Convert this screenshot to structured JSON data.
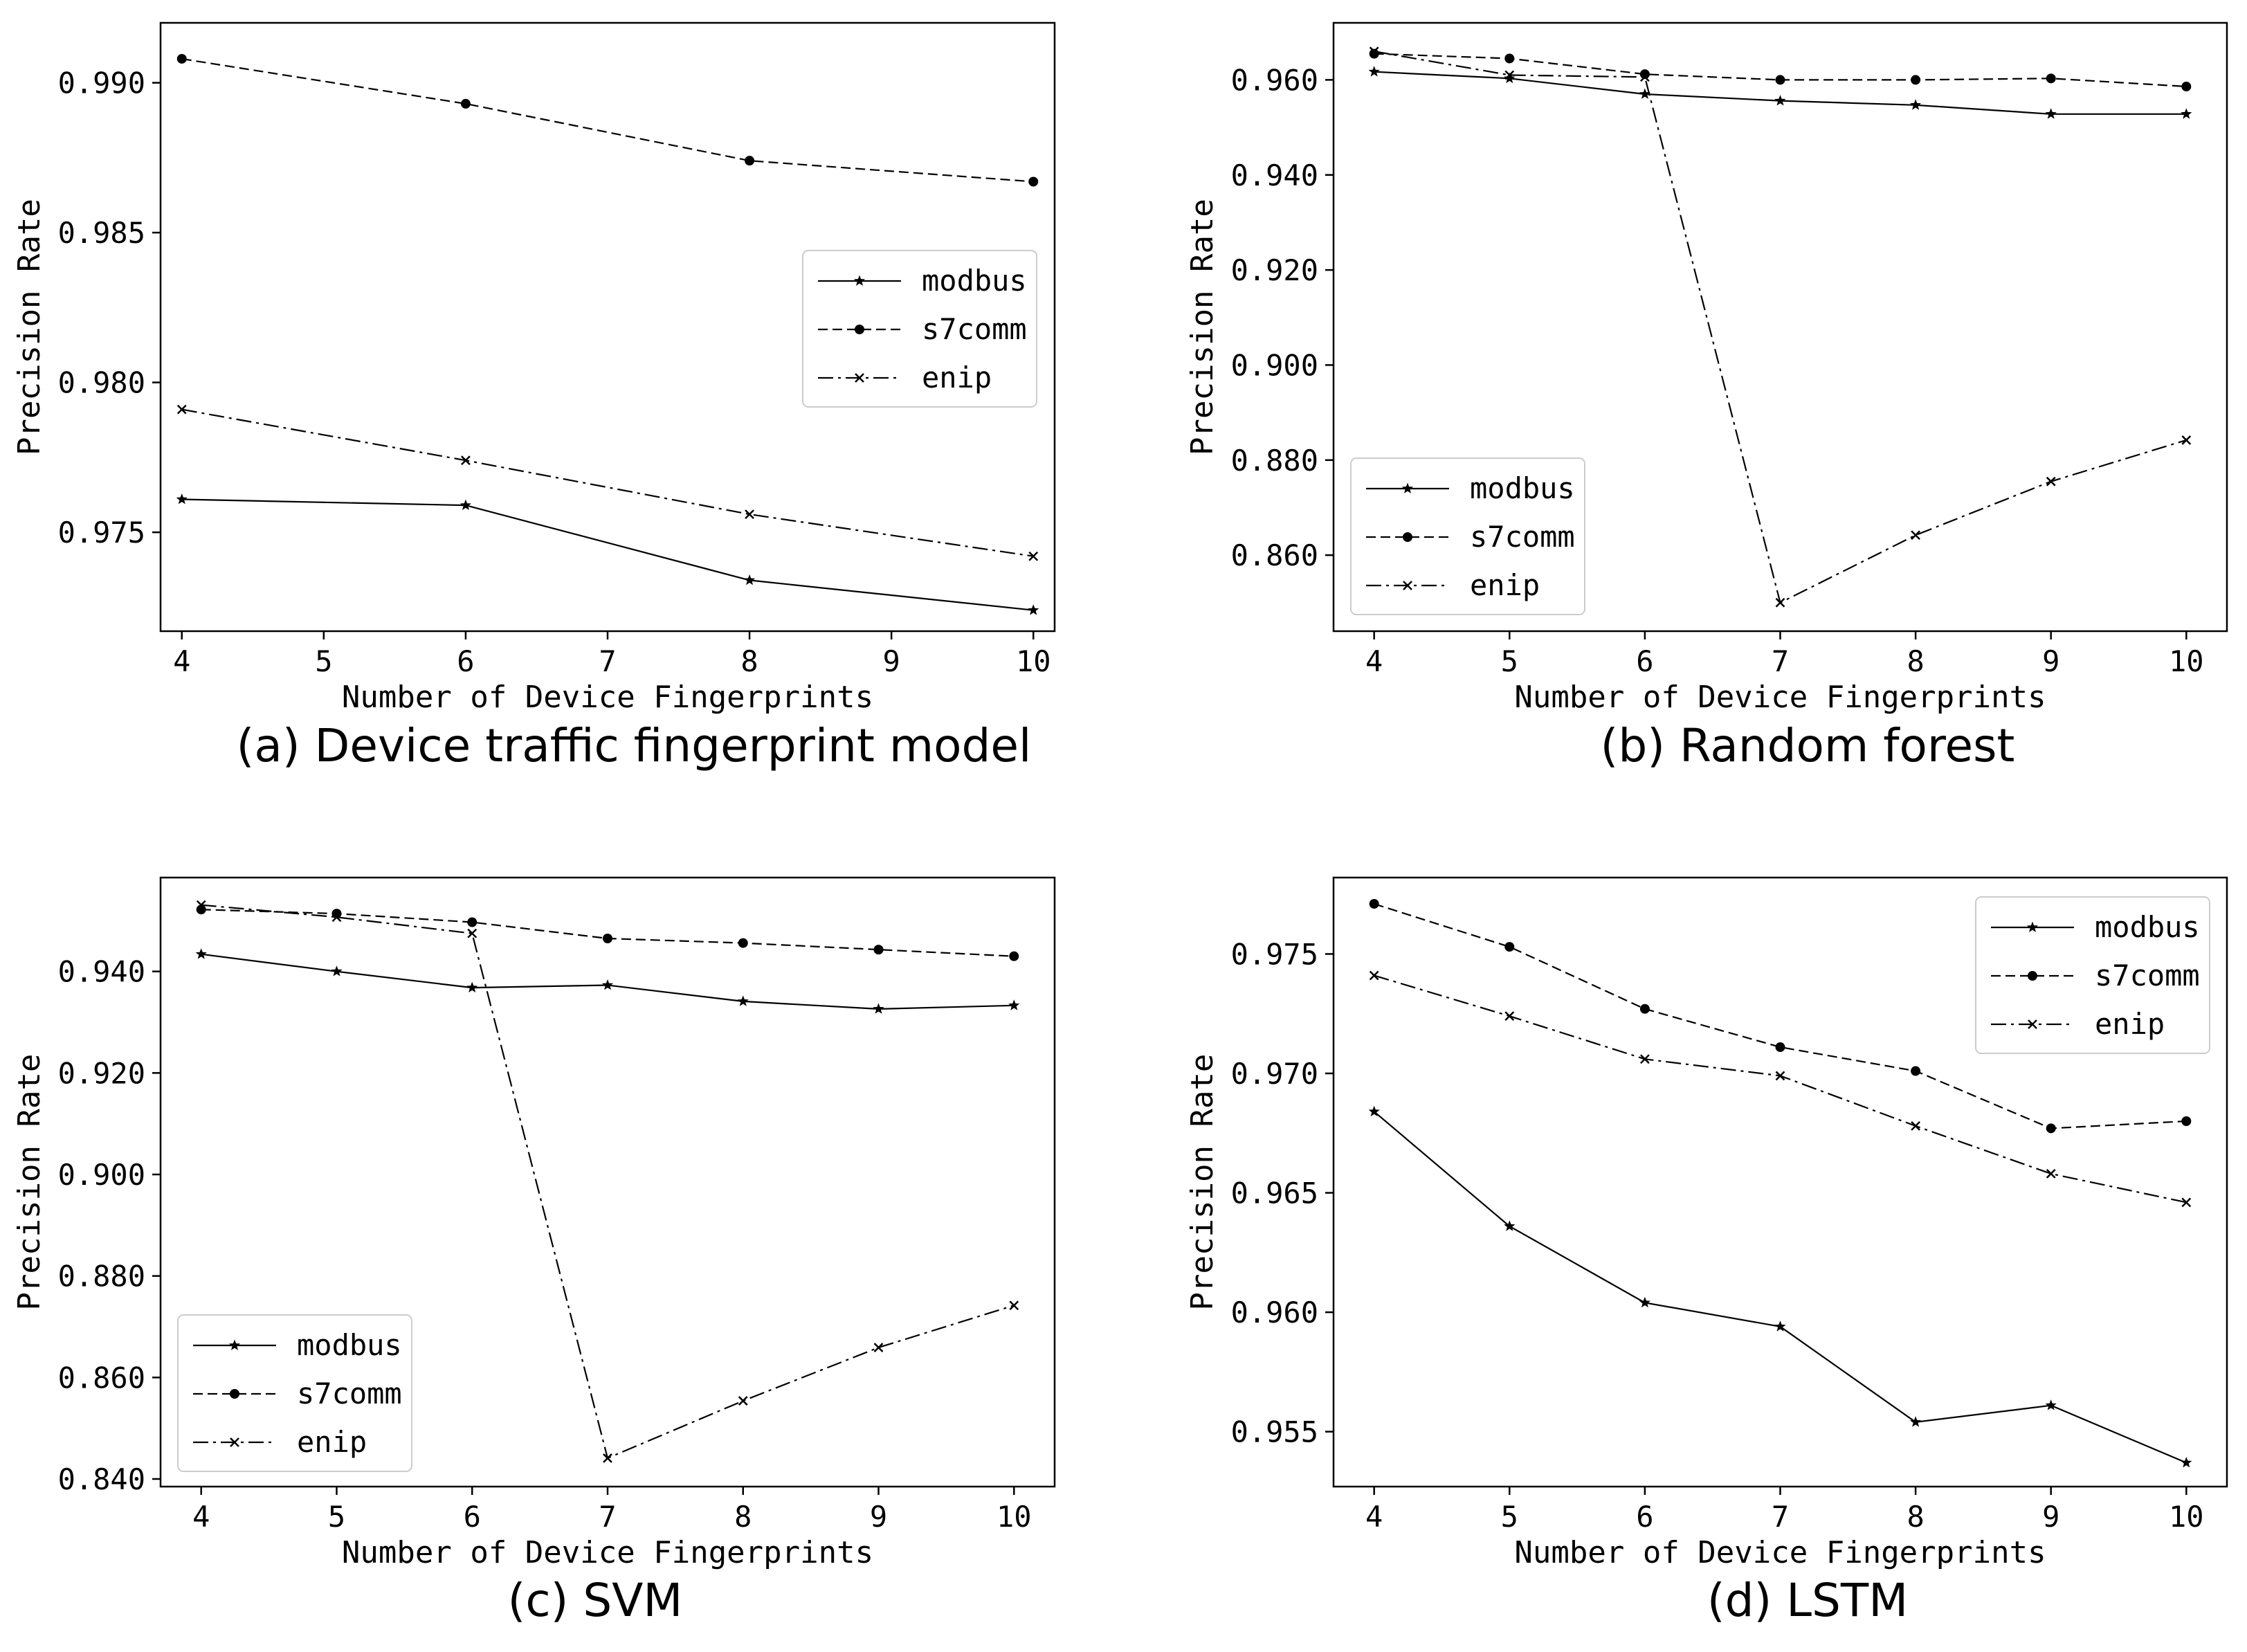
{
  "chart_data": [
    {
      "type": "line",
      "caption": "(a) Device traffic fingerprint model",
      "xlabel": "Number of Device Fingerprints",
      "ylabel": "Precision Rate",
      "x": [
        4,
        6,
        8,
        10
      ],
      "xticks": [
        "4",
        "5",
        "6",
        "7",
        "8",
        "9",
        "10"
      ],
      "xlim": [
        3.85,
        10.15
      ],
      "yticks": [
        "0.975",
        "0.980",
        "0.985",
        "0.990"
      ],
      "ylim": [
        0.9717,
        0.992
      ],
      "legend": "center-right",
      "grid": false,
      "series": [
        {
          "name": "modbus",
          "style": "solid",
          "marker": "star",
          "values": [
            0.9761,
            0.9759,
            0.9734,
            0.9724
          ]
        },
        {
          "name": "s7comm",
          "style": "dashed",
          "marker": "dot",
          "values": [
            0.9908,
            0.9893,
            0.9874,
            0.9867
          ]
        },
        {
          "name": "enip",
          "style": "dashdot",
          "marker": "x",
          "values": [
            0.9791,
            0.9774,
            0.9756,
            0.9742
          ]
        }
      ]
    },
    {
      "type": "line",
      "caption": "(b) Random forest",
      "xlabel": "Number of Device Fingerprints",
      "ylabel": "Precision Rate",
      "x": [
        4,
        5,
        6,
        7,
        8,
        9,
        10
      ],
      "xticks": [
        "4",
        "5",
        "6",
        "7",
        "8",
        "9",
        "10"
      ],
      "xlim": [
        3.7,
        10.3
      ],
      "yticks": [
        "0.860",
        "0.880",
        "0.900",
        "0.920",
        "0.940",
        "0.960"
      ],
      "ylim": [
        0.844,
        0.972
      ],
      "legend": "lower-left",
      "grid": false,
      "series": [
        {
          "name": "modbus",
          "style": "solid",
          "marker": "star",
          "values": [
            0.9617,
            0.9603,
            0.957,
            0.9556,
            0.9547,
            0.9528,
            0.9528
          ]
        },
        {
          "name": "s7comm",
          "style": "dashed",
          "marker": "dot",
          "values": [
            0.9655,
            0.9645,
            0.9612,
            0.96,
            0.96,
            0.9603,
            0.9586
          ]
        },
        {
          "name": "enip",
          "style": "dashdot",
          "marker": "x",
          "values": [
            0.966,
            0.961,
            0.9606,
            0.85,
            0.8642,
            0.8755,
            0.8842
          ]
        }
      ]
    },
    {
      "type": "line",
      "caption": "(c) SVM",
      "xlabel": "Number of Device Fingerprints",
      "ylabel": "Precision Rate",
      "x": [
        4,
        5,
        6,
        7,
        8,
        9,
        10
      ],
      "xticks": [
        "4",
        "5",
        "6",
        "7",
        "8",
        "9",
        "10"
      ],
      "xlim": [
        3.7,
        10.3
      ],
      "yticks": [
        "0.840",
        "0.860",
        "0.880",
        "0.900",
        "0.920",
        "0.940"
      ],
      "ylim": [
        0.8385,
        0.9585
      ],
      "legend": "lower-left",
      "grid": false,
      "series": [
        {
          "name": "modbus",
          "style": "solid",
          "marker": "star",
          "values": [
            0.9434,
            0.94,
            0.9368,
            0.9373,
            0.9341,
            0.9326,
            0.9333
          ]
        },
        {
          "name": "s7comm",
          "style": "dashed",
          "marker": "dot",
          "values": [
            0.9522,
            0.9514,
            0.9497,
            0.9465,
            0.9456,
            0.9443,
            0.943
          ]
        },
        {
          "name": "enip",
          "style": "dashdot",
          "marker": "x",
          "values": [
            0.9531,
            0.9507,
            0.9475,
            0.8441,
            0.8554,
            0.8659,
            0.8742
          ]
        }
      ]
    },
    {
      "type": "line",
      "caption": "(d) LSTM",
      "xlabel": "Number of Device Fingerprints",
      "ylabel": "Precision Rate",
      "x": [
        4,
        5,
        6,
        7,
        8,
        9,
        10
      ],
      "xticks": [
        "4",
        "5",
        "6",
        "7",
        "8",
        "9",
        "10"
      ],
      "xlim": [
        3.7,
        10.3
      ],
      "yticks": [
        "0.955",
        "0.960",
        "0.965",
        "0.970",
        "0.975"
      ],
      "ylim": [
        0.9527,
        0.9782
      ],
      "legend": "upper-right",
      "grid": false,
      "series": [
        {
          "name": "modbus",
          "style": "solid",
          "marker": "star",
          "values": [
            0.9684,
            0.9636,
            0.9604,
            0.9594,
            0.9554,
            0.9561,
            0.9537
          ]
        },
        {
          "name": "s7comm",
          "style": "dashed",
          "marker": "dot",
          "values": [
            0.9771,
            0.9753,
            0.9727,
            0.9711,
            0.9701,
            0.9677,
            0.968
          ]
        },
        {
          "name": "enip",
          "style": "dashdot",
          "marker": "x",
          "values": [
            0.9741,
            0.9724,
            0.9706,
            0.9699,
            0.9678,
            0.9658,
            0.9646
          ]
        }
      ]
    }
  ]
}
